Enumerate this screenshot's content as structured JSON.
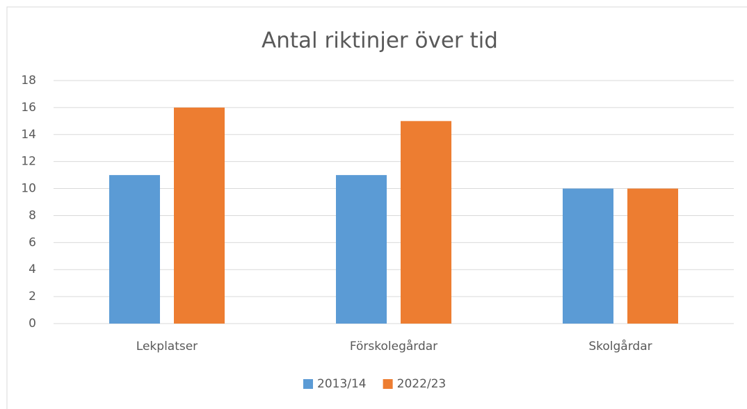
{
  "chart_data": {
    "type": "bar",
    "title": "Antal riktinjer över tid",
    "categories": [
      "Lekplatser",
      "Förskolegårdar",
      "Skolgårdar"
    ],
    "series": [
      {
        "name": "2013/14",
        "color": "#5b9bd5",
        "values": [
          11,
          11,
          10
        ]
      },
      {
        "name": "2022/23",
        "color": "#ed7d31",
        "values": [
          16,
          15,
          10
        ]
      }
    ],
    "ylim": [
      0,
      18
    ],
    "yticks": [
      0,
      2,
      4,
      6,
      8,
      10,
      12,
      14,
      16,
      18
    ],
    "grid": true,
    "legend": "bottom"
  }
}
